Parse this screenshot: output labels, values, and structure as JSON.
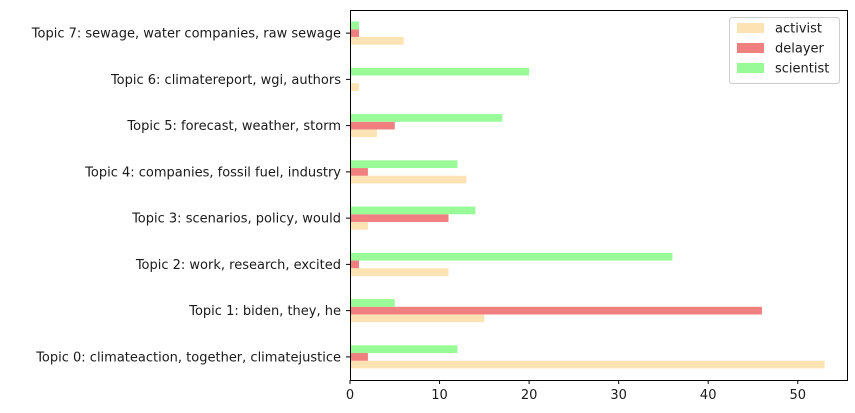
{
  "chart_data": {
    "type": "bar",
    "orientation": "horizontal",
    "title": "",
    "xlabel": "",
    "ylabel": "",
    "xlim": [
      0,
      55.5
    ],
    "xticks": [
      0,
      10,
      20,
      30,
      40,
      50
    ],
    "grid": false,
    "legend_position": "top-right",
    "categories": [
      "Topic 0: climateaction, together, climatejustice",
      "Topic 1: biden, they, he",
      "Topic 2: work, research, excited",
      "Topic 3: scenarios, policy, would",
      "Topic 4: companies, fossil fuel, industry",
      "Topic 5: forecast, weather, storm",
      "Topic 6: climatereport, wgi, authors",
      "Topic 7: sewage, water companies, raw sewage"
    ],
    "series": [
      {
        "name": "activist",
        "color": "#fde3b3",
        "values": [
          53,
          15,
          11,
          2,
          13,
          3,
          1,
          6
        ]
      },
      {
        "name": "delayer",
        "color": "#f08080",
        "values": [
          2,
          46,
          1,
          11,
          2,
          5,
          0,
          1
        ]
      },
      {
        "name": "scientist",
        "color": "#98fb98",
        "values": [
          12,
          5,
          36,
          14,
          12,
          17,
          20,
          1
        ]
      }
    ]
  }
}
